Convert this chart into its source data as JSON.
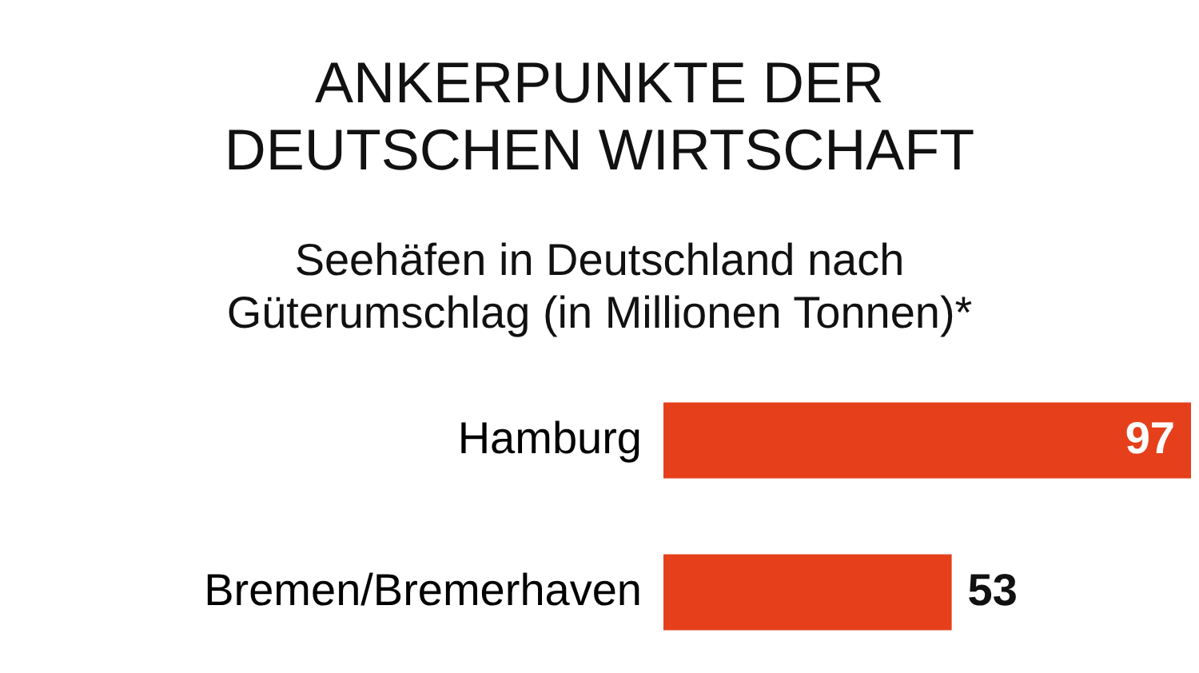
{
  "chart_data": {
    "type": "bar",
    "orientation": "horizontal",
    "title": "ANKERPUNKTE DER DEUTSCHEN WIRTSCHAFT",
    "subtitle": "Seehäfen in Deutschland nach Güterumschlag (in Millionen Tonnen)*",
    "categories": [
      "Hamburg",
      "Bremen/Bremerhaven"
    ],
    "values": [
      97,
      53
    ],
    "color": "#e5401b",
    "data_labels": true
  }
}
